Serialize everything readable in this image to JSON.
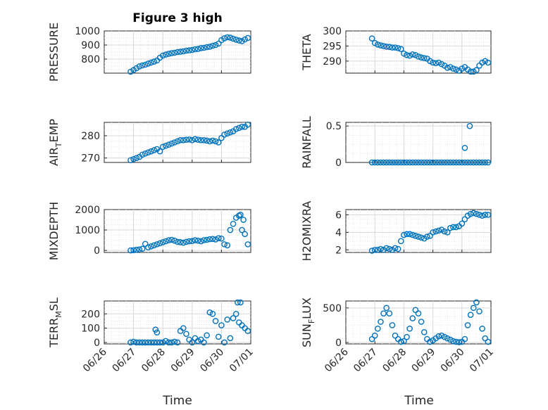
{
  "figure": {
    "title": "Figure 3 high",
    "xlabel": "Time"
  },
  "colors": {
    "marker": "#0072BD",
    "axis": "#262626",
    "grid": "#d9d9d9"
  },
  "chart_data": [
    {
      "type": "scatter",
      "panel": "left-1",
      "title": "Figure 3 high",
      "ylabel": "PRESSURE",
      "xlim": [
        "06/26",
        "07/01"
      ],
      "ylim": [
        700,
        1000
      ],
      "yticks": [
        800,
        900,
        1000
      ],
      "xticks": [
        "06/26",
        "06/27",
        "06/28",
        "06/29",
        "06/30",
        "07/01"
      ],
      "grid": true,
      "show_xticklabels": false,
      "series": [
        {
          "x": [
            0.9,
            1.0,
            1.1,
            1.2,
            1.3,
            1.4,
            1.5,
            1.6,
            1.7,
            1.8,
            1.9,
            2.0,
            2.1,
            2.2,
            2.3,
            2.4,
            2.5,
            2.6,
            2.7,
            2.8,
            2.9,
            3.0,
            3.1,
            3.2,
            3.3,
            3.4,
            3.5,
            3.6,
            3.7,
            3.8,
            3.9,
            4.0,
            4.1,
            4.2,
            4.3,
            4.4,
            4.5,
            4.6,
            4.7,
            4.8,
            4.9
          ],
          "y": [
            710,
            722,
            735,
            748,
            755,
            760,
            768,
            775,
            782,
            790,
            810,
            825,
            832,
            838,
            842,
            845,
            850,
            852,
            855,
            860,
            862,
            865,
            870,
            872,
            878,
            880,
            885,
            888,
            895,
            900,
            910,
            935,
            948,
            955,
            952,
            945,
            938,
            932,
            928,
            940,
            950
          ]
        }
      ]
    },
    {
      "type": "scatter",
      "panel": "right-1",
      "title": "",
      "ylabel": "THETA",
      "xlim": [
        "06/26",
        "07/01"
      ],
      "ylim": [
        286,
        300
      ],
      "yticks": [
        290,
        295,
        300
      ],
      "xticks": [
        "06/26",
        "06/27",
        "06/28",
        "06/29",
        "06/30",
        "07/01"
      ],
      "grid": true,
      "show_xticklabels": false,
      "series": [
        {
          "x": [
            0.9,
            1.0,
            1.1,
            1.2,
            1.3,
            1.4,
            1.5,
            1.6,
            1.7,
            1.8,
            1.9,
            2.0,
            2.1,
            2.2,
            2.3,
            2.4,
            2.5,
            2.6,
            2.7,
            2.8,
            2.9,
            3.0,
            3.1,
            3.2,
            3.3,
            3.4,
            3.5,
            3.6,
            3.7,
            3.8,
            3.9,
            4.0,
            4.1,
            4.2,
            4.3,
            4.4,
            4.5,
            4.6,
            4.7,
            4.8,
            4.9
          ],
          "y": [
            297.5,
            296,
            295.5,
            295.2,
            295,
            294.8,
            294.7,
            294.5,
            294.5,
            294.3,
            294,
            292.5,
            292,
            291.8,
            292.2,
            292,
            291.5,
            291.2,
            291,
            290.8,
            290,
            289.5,
            289.3,
            289.5,
            289,
            288.5,
            287.8,
            288,
            287.5,
            287.2,
            286.8,
            287.5,
            288,
            287.2,
            286.5,
            286.5,
            287,
            288.5,
            289.5,
            290,
            289.5
          ]
        }
      ]
    },
    {
      "type": "scatter",
      "panel": "left-2",
      "title": "",
      "ylabel": "AIR_TEMP",
      "xlim": [
        "06/26",
        "07/01"
      ],
      "ylim": [
        268,
        286
      ],
      "yticks": [
        270,
        280
      ],
      "xticks": [
        "06/26",
        "06/27",
        "06/28",
        "06/29",
        "06/30",
        "07/01"
      ],
      "grid": true,
      "show_xticklabels": false,
      "series": [
        {
          "x": [
            0.9,
            1.0,
            1.1,
            1.2,
            1.3,
            1.4,
            1.5,
            1.6,
            1.7,
            1.8,
            1.9,
            2.0,
            2.1,
            2.2,
            2.3,
            2.4,
            2.5,
            2.6,
            2.7,
            2.8,
            2.9,
            3.0,
            3.1,
            3.2,
            3.3,
            3.4,
            3.5,
            3.6,
            3.7,
            3.8,
            3.9,
            4.0,
            4.1,
            4.2,
            4.3,
            4.4,
            4.5,
            4.6,
            4.7,
            4.8,
            4.9
          ],
          "y": [
            269,
            269.5,
            270,
            270.5,
            271.5,
            272,
            272.5,
            273,
            273.5,
            274,
            273,
            275,
            275.5,
            276,
            276.5,
            277,
            277.5,
            278,
            278,
            278.2,
            278.3,
            278,
            278.5,
            278.2,
            278,
            278,
            277.8,
            277.5,
            277.8,
            277.5,
            277,
            279,
            280.5,
            281,
            281.5,
            282,
            283,
            283.5,
            284,
            284,
            285
          ]
        }
      ]
    },
    {
      "type": "scatter",
      "panel": "right-2",
      "title": "",
      "ylabel": "RAINFALL",
      "xlim": [
        "06/26",
        "07/01"
      ],
      "ylim": [
        0,
        0.55
      ],
      "yticks": [
        0,
        0.5
      ],
      "xticks": [
        "06/26",
        "06/27",
        "06/28",
        "06/29",
        "06/30",
        "07/01"
      ],
      "grid": true,
      "show_xticklabels": false,
      "series": [
        {
          "x": [
            0.9,
            1.0,
            1.1,
            1.2,
            1.3,
            1.4,
            1.5,
            1.6,
            1.7,
            1.8,
            1.9,
            2.0,
            2.1,
            2.2,
            2.3,
            2.4,
            2.5,
            2.6,
            2.7,
            2.8,
            2.9,
            3.0,
            3.1,
            3.2,
            3.3,
            3.4,
            3.5,
            3.6,
            3.7,
            3.8,
            3.9,
            4.0,
            4.1,
            4.2,
            4.3,
            4.4,
            4.5,
            4.6,
            4.7,
            4.8,
            4.9,
            4.1,
            4.27
          ],
          "y": [
            0,
            0,
            0,
            0,
            0,
            0,
            0,
            0,
            0,
            0,
            0,
            0,
            0,
            0,
            0,
            0,
            0,
            0,
            0,
            0,
            0,
            0,
            0,
            0,
            0,
            0,
            0,
            0,
            0,
            0,
            0,
            0,
            0,
            0,
            0,
            0,
            0,
            0,
            0,
            0,
            0,
            0.2,
            0.5
          ]
        }
      ]
    },
    {
      "type": "scatter",
      "panel": "left-3",
      "title": "",
      "ylabel": "MIXDEPTH",
      "xlim": [
        "06/26",
        "07/01"
      ],
      "ylim": [
        -100,
        2000
      ],
      "yticks": [
        0,
        1000,
        2000
      ],
      "xticks": [
        "06/26",
        "06/27",
        "06/28",
        "06/29",
        "06/30",
        "07/01"
      ],
      "grid": true,
      "show_xticklabels": false,
      "series": [
        {
          "x": [
            0.9,
            1.0,
            1.1,
            1.2,
            1.3,
            1.4,
            1.5,
            1.6,
            1.7,
            1.8,
            1.9,
            2.0,
            2.1,
            2.2,
            2.3,
            2.4,
            2.5,
            2.6,
            2.7,
            2.8,
            2.9,
            3.0,
            3.1,
            3.2,
            3.3,
            3.4,
            3.5,
            3.6,
            3.7,
            3.8,
            3.9,
            4.0,
            4.1,
            4.2,
            4.3,
            4.4,
            4.5,
            4.6,
            4.7,
            4.8,
            4.9,
            4.65,
            4.75
          ],
          "y": [
            0,
            10,
            30,
            50,
            80,
            320,
            150,
            200,
            250,
            300,
            350,
            400,
            450,
            500,
            520,
            480,
            420,
            400,
            380,
            420,
            450,
            460,
            500,
            480,
            450,
            500,
            520,
            550,
            560,
            540,
            600,
            580,
            300,
            250,
            1000,
            1300,
            1600,
            1700,
            1000,
            800,
            300,
            1750,
            1500
          ]
        }
      ]
    },
    {
      "type": "scatter",
      "panel": "right-3",
      "title": "",
      "ylabel": "H2OMIXRA",
      "xlim": [
        "06/26",
        "07/01"
      ],
      "ylim": [
        1.7,
        6.6
      ],
      "yticks": [
        2,
        4,
        6
      ],
      "xticks": [
        "06/26",
        "06/27",
        "06/28",
        "06/29",
        "06/30",
        "07/01"
      ],
      "grid": true,
      "show_xticklabels": false,
      "series": [
        {
          "x": [
            0.9,
            1.0,
            1.1,
            1.2,
            1.3,
            1.4,
            1.5,
            1.6,
            1.7,
            1.8,
            1.9,
            2.0,
            2.1,
            2.2,
            2.3,
            2.4,
            2.5,
            2.6,
            2.7,
            2.8,
            2.9,
            3.0,
            3.1,
            3.2,
            3.3,
            3.4,
            3.5,
            3.6,
            3.7,
            3.8,
            3.9,
            4.0,
            4.1,
            4.2,
            4.3,
            4.4,
            4.5,
            4.6,
            4.7,
            4.8,
            4.9
          ],
          "y": [
            1.9,
            2.0,
            2.0,
            2.1,
            2.0,
            2.2,
            2.1,
            2.0,
            2.2,
            2.1,
            3.0,
            3.7,
            3.8,
            3.8,
            3.7,
            3.6,
            3.5,
            3.4,
            3.3,
            3.5,
            3.6,
            4.0,
            4.1,
            4.2,
            4.3,
            4.1,
            4.0,
            4.5,
            4.6,
            4.6,
            4.7,
            5.0,
            5.5,
            5.9,
            6.1,
            6.2,
            6.1,
            6.0,
            5.9,
            6.0,
            6.0
          ]
        }
      ]
    },
    {
      "type": "scatter",
      "panel": "left-4",
      "title": "",
      "ylabel": "TERR_MSL",
      "xlim": [
        "06/26",
        "07/01"
      ],
      "ylim": [
        -10,
        290
      ],
      "yticks": [
        0,
        100,
        200
      ],
      "xticks": [
        "06/26",
        "06/27",
        "06/28",
        "06/29",
        "06/30",
        "07/01"
      ],
      "grid": true,
      "show_xticklabels": true,
      "series": [
        {
          "x": [
            0.9,
            1.0,
            1.1,
            1.2,
            1.3,
            1.4,
            1.5,
            1.6,
            1.7,
            1.8,
            1.9,
            1.75,
            1.8,
            2.0,
            2.1,
            2.2,
            2.3,
            2.4,
            2.5,
            2.6,
            2.7,
            2.8,
            2.9,
            3.0,
            3.1,
            3.2,
            3.3,
            3.4,
            3.5,
            3.6,
            3.7,
            3.8,
            3.9,
            4.0,
            4.1,
            4.2,
            4.3,
            4.4,
            4.5,
            4.6,
            4.7,
            4.8,
            4.9,
            4.55,
            4.65
          ],
          "y": [
            0,
            5,
            0,
            0,
            0,
            0,
            0,
            0,
            0,
            0,
            0,
            90,
            70,
            0,
            10,
            0,
            0,
            5,
            0,
            80,
            100,
            60,
            20,
            0,
            30,
            10,
            20,
            0,
            50,
            210,
            200,
            150,
            40,
            120,
            0,
            160,
            30,
            170,
            200,
            140,
            120,
            100,
            80,
            280,
            280
          ]
        }
      ]
    },
    {
      "type": "scatter",
      "panel": "right-4",
      "title": "",
      "ylabel": "SUN_FLUX",
      "xlim": [
        "06/26",
        "07/01"
      ],
      "ylim": [
        -20,
        600
      ],
      "yticks": [
        0,
        500
      ],
      "xticks": [
        "06/26",
        "06/27",
        "06/28",
        "06/29",
        "06/30",
        "07/01"
      ],
      "grid": true,
      "show_xticklabels": true,
      "series": [
        {
          "x": [
            0.9,
            1.0,
            1.1,
            1.2,
            1.3,
            1.4,
            1.5,
            1.6,
            1.7,
            1.8,
            1.9,
            2.0,
            2.1,
            2.2,
            2.3,
            2.4,
            2.5,
            2.6,
            2.7,
            2.8,
            2.9,
            3.0,
            3.1,
            3.2,
            3.3,
            3.4,
            3.5,
            3.6,
            3.7,
            3.8,
            3.9,
            4.0,
            4.1,
            4.2,
            4.3,
            4.4,
            4.5,
            4.6,
            4.7,
            4.8,
            4.9
          ],
          "y": [
            50,
            100,
            200,
            300,
            420,
            500,
            420,
            250,
            100,
            50,
            10,
            20,
            80,
            200,
            350,
            470,
            420,
            300,
            150,
            50,
            10,
            30,
            60,
            90,
            100,
            80,
            60,
            40,
            20,
            10,
            5,
            10,
            50,
            250,
            400,
            500,
            580,
            450,
            200,
            60,
            10
          ]
        }
      ]
    }
  ]
}
